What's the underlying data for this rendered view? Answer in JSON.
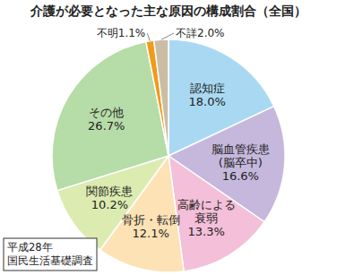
{
  "chart_data": {
    "type": "pie",
    "title": "介護が必要となった主な原因の構成割合（全国）",
    "categories": [
      "認知症",
      "脳血管疾患\n(脳卒中)",
      "高齢による\n衰弱",
      "骨折・転倒",
      "関節疾患",
      "その他",
      "不明",
      "不詳"
    ],
    "values": [
      18.0,
      16.6,
      13.3,
      12.1,
      10.2,
      26.7,
      1.1,
      2.0
    ],
    "value_labels": [
      "18.0%",
      "16.6%",
      "13.3%",
      "12.1%",
      "10.2%",
      "26.7%",
      "1.1%",
      "2.0%"
    ],
    "colors": [
      "#a9d9f2",
      "#c5b8dc",
      "#f4bfd8",
      "#fde2b6",
      "#dcebb0",
      "#b6dca7",
      "#f29a1a",
      "#cbbda4"
    ],
    "data_labels": true,
    "annotations": [
      "平成28年",
      "国民生活基礎調査"
    ]
  }
}
